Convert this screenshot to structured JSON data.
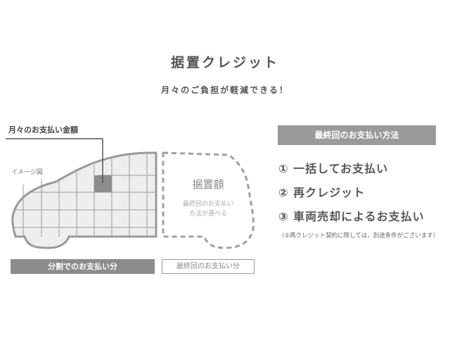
{
  "header": {
    "title": "据置クレジット",
    "subtitle": "月々のご負担が軽減できる！"
  },
  "diagram": {
    "monthly_label": "月々のお支払い金額",
    "image_note": "イメージ図",
    "deferred_title": "据置額",
    "deferred_desc_line1": "最終回のお支払い",
    "deferred_desc_line2": "方法が選べる",
    "split_payment_label": "分割でのお支払い分",
    "final_payment_label": "最終回のお支払い分"
  },
  "methods": {
    "header": "最終回のお支払い方法",
    "options": [
      "① 一括してお支払い",
      "② 再クレジット",
      "③ 車両売却によるお支払い"
    ],
    "note": "（②再クレジット契約に際しては、別途条件がございます）"
  },
  "colors": {
    "bar": "#8c8c8c",
    "car_fill": "#eeeeee",
    "car_stroke": "#999999",
    "highlight": "#8c8c8c"
  }
}
